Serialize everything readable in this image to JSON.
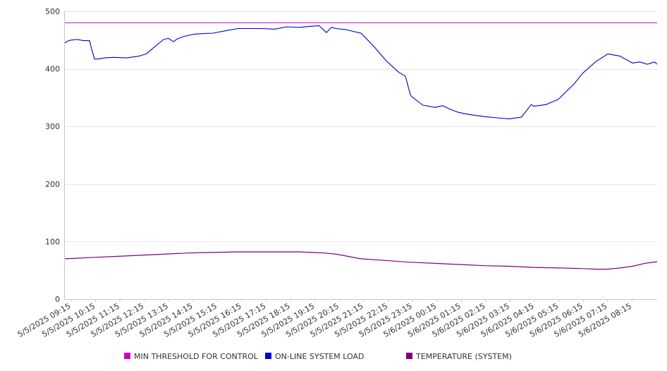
{
  "chart_data": {
    "type": "line",
    "title": "",
    "xlabel": "",
    "ylabel": "",
    "ylim": [
      0,
      500
    ],
    "y_ticks": [
      0,
      100,
      200,
      300,
      400,
      500
    ],
    "grid": "horizontal",
    "legend_position": "bottom",
    "x_tick_labels": [
      "5/5/2025 09:15",
      "5/5/2025 10:15",
      "5/5/2025 11:15",
      "5/5/2025 12:15",
      "5/5/2025 13:15",
      "5/5/2025 14:15",
      "5/5/2025 15:15",
      "5/5/2025 16:15",
      "5/5/2025 17:15",
      "5/5/2025 18:15",
      "5/5/2025 19:15",
      "5/5/2025 20:15",
      "5/5/2025 21:15",
      "5/5/2025 22:15",
      "5/5/2025 23:15",
      "5/6/2025 00:15",
      "5/6/2025 01:15",
      "5/6/2025 02:15",
      "5/6/2025 03:15",
      "5/6/2025 04:15",
      "5/6/2025 05:15",
      "5/6/2025 06:15",
      "5/6/2025 07:15",
      "5/6/2025 08:15"
    ],
    "x_range_hours": [
      0,
      24
    ],
    "series": [
      {
        "name": "MIN THRESHOLD FOR CONTROL",
        "color": "#cc00cc",
        "x_hours": [
          0,
          24
        ],
        "y": [
          480,
          480
        ]
      },
      {
        "name": "ON-LINE SYSTEM LOAD",
        "color": "#0000cc",
        "x_hours": [
          0,
          0.1,
          0.25,
          0.5,
          0.75,
          1.0,
          1.08,
          1.2,
          1.35,
          1.6,
          2.0,
          2.5,
          3.0,
          3.3,
          3.6,
          4.0,
          4.2,
          4.4,
          4.55,
          4.8,
          5.2,
          5.5,
          6.0,
          6.5,
          7.0,
          7.5,
          8.0,
          8.5,
          9.0,
          9.5,
          10.0,
          10.3,
          10.6,
          10.8,
          11.0,
          11.4,
          12.0,
          12.5,
          13.0,
          13.5,
          13.8,
          14.0,
          14.05,
          14.5,
          15.0,
          15.3,
          15.6,
          15.9,
          16.2,
          16.5,
          17.0,
          17.5,
          18.0,
          18.5,
          18.9,
          19.0,
          19.5,
          20.0,
          20.3,
          20.6,
          21.0,
          21.5,
          22.0,
          22.5,
          23.0,
          23.3,
          23.6,
          23.9,
          24.0
        ],
        "y": [
          445,
          448,
          450,
          451,
          449,
          449,
          435,
          417,
          417,
          419,
          420,
          419,
          422,
          426,
          437,
          451,
          453,
          447,
          452,
          456,
          460,
          461,
          462,
          466,
          470,
          470,
          470,
          469,
          473,
          472,
          474,
          475,
          463,
          472,
          470,
          468,
          462,
          440,
          415,
          395,
          387,
          355,
          352,
          337,
          333,
          336,
          330,
          325,
          322,
          320,
          317,
          315,
          313,
          316,
          338,
          335,
          338,
          347,
          360,
          372,
          393,
          412,
          426,
          422,
          410,
          412,
          408,
          412,
          408
        ],
        "stroke": 1.1
      },
      {
        "name": "TEMPERATURE (SYSTEM)",
        "color": "#800080",
        "x_hours": [
          0,
          0.5,
          1.0,
          2.0,
          3.0,
          4.0,
          5.0,
          6.0,
          7.0,
          8.0,
          9.0,
          9.5,
          10.0,
          10.5,
          11.0,
          11.5,
          12.0,
          13.0,
          14.0,
          15.0,
          16.0,
          17.0,
          18.0,
          19.0,
          20.0,
          21.0,
          21.5,
          22.0,
          22.5,
          23.0,
          23.5,
          24.0
        ],
        "y": [
          70,
          71,
          72,
          74,
          76,
          78,
          80,
          81,
          82,
          82,
          82,
          82,
          81,
          80,
          78,
          74,
          70,
          67,
          64,
          62,
          60,
          58,
          57,
          55,
          54,
          53,
          52,
          52,
          54,
          57,
          62,
          65
        ],
        "stroke": 1.2
      }
    ]
  }
}
